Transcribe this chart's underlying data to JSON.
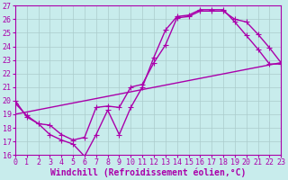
{
  "xlabel": "Windchill (Refroidissement éolien,°C)",
  "bg_color": "#c8ecec",
  "line_color": "#aa00aa",
  "grid_color": "#aacccc",
  "xlim": [
    0,
    23
  ],
  "ylim": [
    16,
    27
  ],
  "xticks": [
    0,
    1,
    2,
    3,
    4,
    5,
    6,
    7,
    8,
    9,
    10,
    11,
    12,
    13,
    14,
    15,
    16,
    17,
    18,
    19,
    20,
    21,
    22,
    23
  ],
  "yticks": [
    16,
    17,
    18,
    19,
    20,
    21,
    22,
    23,
    24,
    25,
    26,
    27
  ],
  "line1_x": [
    0,
    1,
    2,
    3,
    4,
    5,
    6,
    7,
    8,
    9,
    10,
    11,
    12,
    13,
    14,
    15,
    16,
    17,
    18,
    19,
    20,
    21,
    22,
    23
  ],
  "line1_y": [
    20.0,
    18.8,
    18.3,
    17.5,
    17.1,
    16.8,
    15.9,
    17.5,
    19.3,
    17.5,
    19.5,
    21.0,
    23.2,
    25.2,
    26.2,
    26.3,
    26.7,
    26.7,
    26.7,
    25.8,
    24.8,
    23.8,
    22.7,
    22.7
  ],
  "line2_x": [
    0,
    1,
    2,
    3,
    4,
    5,
    6,
    7,
    8,
    9,
    10,
    11,
    12,
    13,
    14,
    15,
    16,
    17,
    18,
    19,
    20,
    21,
    22,
    23
  ],
  "line2_y": [
    19.8,
    18.9,
    18.3,
    18.2,
    17.5,
    17.1,
    17.3,
    19.5,
    19.6,
    19.5,
    21.0,
    21.2,
    22.8,
    24.1,
    26.1,
    26.2,
    26.6,
    26.6,
    26.6,
    26.0,
    25.8,
    24.9,
    23.9,
    22.8
  ],
  "line3_x": [
    0,
    23
  ],
  "line3_y": [
    19.0,
    22.8
  ],
  "marker": "+",
  "marker_size": 4,
  "linewidth": 1.0,
  "tick_fontsize": 6.0,
  "label_fontsize": 7.0
}
